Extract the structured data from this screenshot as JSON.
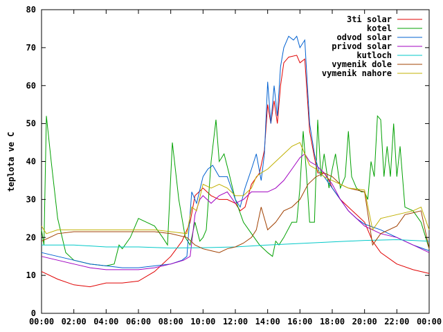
{
  "chart_data": {
    "type": "line",
    "ylabel": "teplota ve C",
    "xlabel": "",
    "ylim": [
      0,
      80
    ],
    "xlim": [
      0,
      24
    ],
    "y_ticks": [
      0,
      10,
      20,
      30,
      40,
      50,
      60,
      70,
      80
    ],
    "x_ticks": [
      "00:00",
      "02:00",
      "04:00",
      "06:00",
      "08:00",
      "10:00",
      "12:00",
      "14:00",
      "16:00",
      "18:00",
      "20:00",
      "22:00",
      "00:00"
    ],
    "x_tick_hours": [
      0,
      2,
      4,
      6,
      8,
      10,
      12,
      14,
      16,
      18,
      20,
      22,
      24
    ],
    "legend_position": "top-right",
    "grid": false,
    "series": [
      {
        "name": "3ti solar",
        "color": "#e00000",
        "points": [
          [
            0,
            11
          ],
          [
            1,
            9
          ],
          [
            2,
            7.5
          ],
          [
            3,
            7
          ],
          [
            4,
            8
          ],
          [
            5,
            8
          ],
          [
            6,
            8.5
          ],
          [
            7,
            11
          ],
          [
            8,
            15
          ],
          [
            8.7,
            19
          ],
          [
            9.2,
            24
          ],
          [
            9.5,
            31
          ],
          [
            10,
            33
          ],
          [
            10.5,
            31
          ],
          [
            11,
            30
          ],
          [
            11.5,
            30
          ],
          [
            12,
            29
          ],
          [
            12.3,
            27
          ],
          [
            12.6,
            28
          ],
          [
            13,
            34
          ],
          [
            13.5,
            37
          ],
          [
            13.8,
            43
          ],
          [
            14,
            55
          ],
          [
            14.2,
            50
          ],
          [
            14.4,
            56
          ],
          [
            14.6,
            50
          ],
          [
            14.8,
            60
          ],
          [
            15,
            66
          ],
          [
            15.3,
            67.5
          ],
          [
            15.8,
            68
          ],
          [
            16,
            66
          ],
          [
            16.3,
            67
          ],
          [
            16.6,
            48
          ],
          [
            16.9,
            41
          ],
          [
            17.1,
            37
          ],
          [
            17.5,
            37
          ],
          [
            17.8,
            35
          ],
          [
            18,
            33
          ],
          [
            18.5,
            30
          ],
          [
            19,
            28
          ],
          [
            19.5,
            26
          ],
          [
            20,
            24
          ],
          [
            20.5,
            19
          ],
          [
            21,
            16
          ],
          [
            22,
            13
          ],
          [
            23,
            11.5
          ],
          [
            24,
            10.5
          ]
        ]
      },
      {
        "name": "kotel",
        "color": "#00a000",
        "points": [
          [
            0,
            22
          ],
          [
            0.15,
            18
          ],
          [
            0.3,
            52
          ],
          [
            0.6,
            40
          ],
          [
            1,
            25
          ],
          [
            1.5,
            16
          ],
          [
            2,
            14
          ],
          [
            3,
            13
          ],
          [
            4,
            12.5
          ],
          [
            4.5,
            13
          ],
          [
            4.8,
            18
          ],
          [
            5,
            17
          ],
          [
            5.5,
            20
          ],
          [
            6,
            25
          ],
          [
            6.5,
            24
          ],
          [
            7,
            23
          ],
          [
            7.5,
            20
          ],
          [
            7.8,
            18
          ],
          [
            8.1,
            45
          ],
          [
            8.5,
            30
          ],
          [
            8.9,
            20
          ],
          [
            9.2,
            18
          ],
          [
            9.5,
            24
          ],
          [
            9.8,
            19
          ],
          [
            10,
            20
          ],
          [
            10.2,
            22
          ],
          [
            10.5,
            40
          ],
          [
            10.8,
            51
          ],
          [
            11,
            40
          ],
          [
            11.3,
            42
          ],
          [
            11.6,
            37
          ],
          [
            12,
            30
          ],
          [
            12.5,
            24
          ],
          [
            13,
            21
          ],
          [
            13.5,
            18
          ],
          [
            14,
            16
          ],
          [
            14.3,
            15
          ],
          [
            14.5,
            19
          ],
          [
            14.7,
            18
          ],
          [
            15,
            20
          ],
          [
            15.5,
            24
          ],
          [
            15.8,
            24
          ],
          [
            16,
            33
          ],
          [
            16.2,
            48
          ],
          [
            16.4,
            37
          ],
          [
            16.6,
            24
          ],
          [
            16.9,
            24
          ],
          [
            17.1,
            51
          ],
          [
            17.3,
            36
          ],
          [
            17.5,
            42
          ],
          [
            17.8,
            33
          ],
          [
            18,
            38
          ],
          [
            18.2,
            42
          ],
          [
            18.5,
            33
          ],
          [
            18.8,
            36
          ],
          [
            19,
            48
          ],
          [
            19.2,
            36
          ],
          [
            19.5,
            33
          ],
          [
            19.8,
            32
          ],
          [
            20,
            32
          ],
          [
            20.2,
            30
          ],
          [
            20.4,
            40
          ],
          [
            20.6,
            36
          ],
          [
            20.8,
            52
          ],
          [
            21,
            51
          ],
          [
            21.2,
            36
          ],
          [
            21.4,
            44
          ],
          [
            21.6,
            36
          ],
          [
            21.8,
            50
          ],
          [
            22,
            36
          ],
          [
            22.2,
            44
          ],
          [
            22.5,
            28
          ],
          [
            23,
            27
          ],
          [
            23.5,
            24
          ],
          [
            24,
            17
          ]
        ]
      },
      {
        "name": "odvod solar",
        "color": "#0060d0",
        "points": [
          [
            0,
            16
          ],
          [
            1,
            15
          ],
          [
            2,
            14
          ],
          [
            3,
            13
          ],
          [
            4,
            12.5
          ],
          [
            5,
            12
          ],
          [
            6,
            12
          ],
          [
            7,
            12.5
          ],
          [
            8,
            13
          ],
          [
            8.7,
            14
          ],
          [
            9,
            15
          ],
          [
            9.3,
            32
          ],
          [
            9.6,
            29
          ],
          [
            10,
            36
          ],
          [
            10.3,
            38
          ],
          [
            10.6,
            39
          ],
          [
            11,
            36
          ],
          [
            11.5,
            36
          ],
          [
            12,
            30
          ],
          [
            12.3,
            28
          ],
          [
            12.6,
            33
          ],
          [
            13,
            38
          ],
          [
            13.3,
            42
          ],
          [
            13.6,
            35
          ],
          [
            13.8,
            42
          ],
          [
            14,
            61
          ],
          [
            14.2,
            50
          ],
          [
            14.4,
            60
          ],
          [
            14.6,
            52
          ],
          [
            14.8,
            65
          ],
          [
            15,
            70
          ],
          [
            15.3,
            73
          ],
          [
            15.6,
            72
          ],
          [
            15.8,
            73
          ],
          [
            16,
            70
          ],
          [
            16.3,
            72
          ],
          [
            16.6,
            50
          ],
          [
            16.9,
            42
          ],
          [
            17.2,
            37
          ],
          [
            17.5,
            36
          ],
          [
            18,
            33
          ],
          [
            18.5,
            30
          ],
          [
            19,
            27
          ],
          [
            19.5,
            25
          ],
          [
            20,
            23.5
          ],
          [
            21,
            22
          ],
          [
            22,
            20
          ],
          [
            23,
            18
          ],
          [
            24,
            16.5
          ]
        ]
      },
      {
        "name": "privod solar",
        "color": "#a000c0",
        "points": [
          [
            0,
            15
          ],
          [
            1,
            14
          ],
          [
            2,
            13
          ],
          [
            3,
            12
          ],
          [
            4,
            11.5
          ],
          [
            5,
            11.5
          ],
          [
            6,
            11.5
          ],
          [
            7,
            12
          ],
          [
            8,
            13
          ],
          [
            8.8,
            14
          ],
          [
            9.2,
            15
          ],
          [
            9.5,
            26
          ],
          [
            9.8,
            30
          ],
          [
            10,
            31
          ],
          [
            10.5,
            29
          ],
          [
            11,
            31
          ],
          [
            11.5,
            32
          ],
          [
            12,
            29
          ],
          [
            12.5,
            30
          ],
          [
            13,
            32
          ],
          [
            13.5,
            32
          ],
          [
            14,
            32
          ],
          [
            14.5,
            33
          ],
          [
            15,
            35
          ],
          [
            15.5,
            38
          ],
          [
            16,
            41
          ],
          [
            16.3,
            42
          ],
          [
            16.6,
            40
          ],
          [
            17,
            39
          ],
          [
            17.5,
            37
          ],
          [
            18,
            34
          ],
          [
            18.5,
            30
          ],
          [
            19,
            27
          ],
          [
            19.5,
            25
          ],
          [
            20,
            23
          ],
          [
            21,
            21
          ],
          [
            22,
            20
          ],
          [
            23,
            18
          ],
          [
            24,
            16
          ]
        ]
      },
      {
        "name": "kutloch",
        "color": "#00c8c8",
        "points": [
          [
            0,
            18
          ],
          [
            2,
            18
          ],
          [
            4,
            17.5
          ],
          [
            6,
            17.5
          ],
          [
            8,
            17.2
          ],
          [
            10,
            17.3
          ],
          [
            12,
            17.5
          ],
          [
            14,
            18
          ],
          [
            16,
            18.4
          ],
          [
            18,
            18.8
          ],
          [
            20,
            19.2
          ],
          [
            22,
            19.4
          ],
          [
            24,
            19
          ]
        ]
      },
      {
        "name": "vymenik dole",
        "color": "#a04000",
        "points": [
          [
            0,
            19
          ],
          [
            0.5,
            20
          ],
          [
            1,
            21
          ],
          [
            2,
            21.5
          ],
          [
            3,
            21.5
          ],
          [
            4,
            21.5
          ],
          [
            5,
            21.5
          ],
          [
            6,
            21.5
          ],
          [
            7,
            21.5
          ],
          [
            8,
            21
          ],
          [
            9,
            20
          ],
          [
            9.5,
            18
          ],
          [
            10,
            17
          ],
          [
            10.5,
            16.5
          ],
          [
            11,
            16
          ],
          [
            11.5,
            17
          ],
          [
            12,
            17.5
          ],
          [
            12.5,
            18.5
          ],
          [
            13,
            20
          ],
          [
            13.3,
            22
          ],
          [
            13.6,
            28
          ],
          [
            14,
            22
          ],
          [
            14.5,
            24
          ],
          [
            15,
            27
          ],
          [
            15.5,
            28
          ],
          [
            16,
            30
          ],
          [
            16.5,
            34
          ],
          [
            17,
            36
          ],
          [
            17.5,
            37
          ],
          [
            18,
            36
          ],
          [
            18.5,
            34
          ],
          [
            19,
            33
          ],
          [
            20,
            32
          ],
          [
            20.5,
            18
          ],
          [
            21,
            21
          ],
          [
            22,
            23
          ],
          [
            22.5,
            26
          ],
          [
            23,
            26.5
          ],
          [
            23.5,
            27
          ],
          [
            24,
            17
          ]
        ]
      },
      {
        "name": "vymenik nahore",
        "color": "#c0b000",
        "points": [
          [
            0,
            23
          ],
          [
            0.3,
            21
          ],
          [
            1,
            22
          ],
          [
            2,
            22
          ],
          [
            3,
            22
          ],
          [
            4,
            22
          ],
          [
            5,
            22
          ],
          [
            6,
            22
          ],
          [
            7,
            22
          ],
          [
            8,
            21.5
          ],
          [
            9,
            21
          ],
          [
            9.3,
            28
          ],
          [
            9.6,
            27
          ],
          [
            10,
            34
          ],
          [
            10.5,
            33
          ],
          [
            11,
            34
          ],
          [
            11.5,
            33
          ],
          [
            12,
            31
          ],
          [
            12.5,
            31
          ],
          [
            13,
            33
          ],
          [
            13.3,
            36
          ],
          [
            13.6,
            37
          ],
          [
            14,
            38
          ],
          [
            14.5,
            40
          ],
          [
            15,
            42
          ],
          [
            15.5,
            44
          ],
          [
            16,
            45
          ],
          [
            16.3,
            42
          ],
          [
            16.6,
            39
          ],
          [
            17,
            38
          ],
          [
            17.5,
            36
          ],
          [
            18,
            35
          ],
          [
            18.5,
            34
          ],
          [
            19,
            33
          ],
          [
            20,
            32.5
          ],
          [
            20.5,
            22
          ],
          [
            21,
            25
          ],
          [
            22,
            26
          ],
          [
            23,
            27
          ],
          [
            23.5,
            28
          ],
          [
            24,
            22
          ]
        ]
      }
    ]
  }
}
